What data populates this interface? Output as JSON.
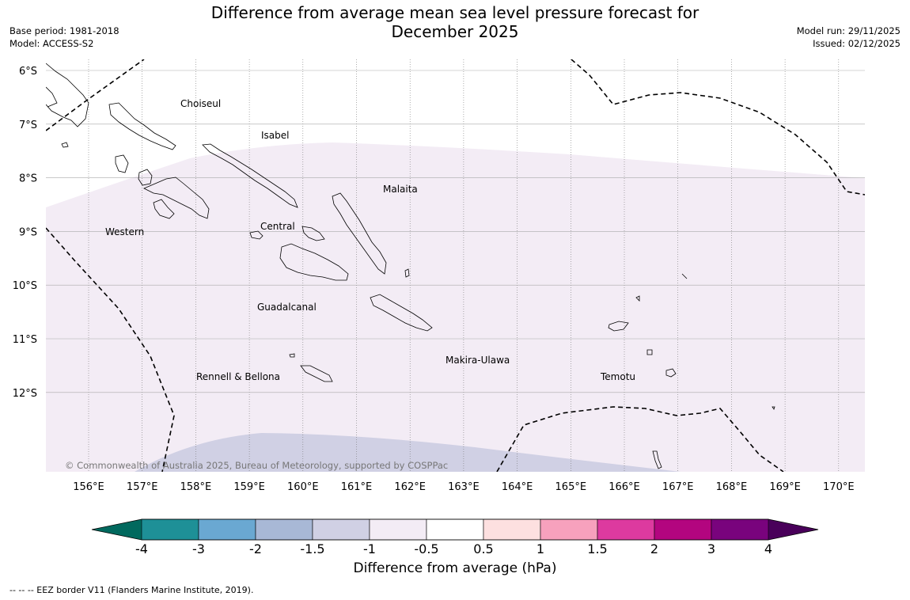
{
  "title_line1": "Difference from average mean sea level pressure forecast for",
  "title_line2": "December 2025",
  "meta_left": {
    "base_period": "Base period: 1981-2018",
    "model": "Model: ACCESS-S2"
  },
  "meta_right": {
    "model_run": "Model run: 29/11/2025",
    "issued": "Issued: 02/12/2025"
  },
  "latitudes": [
    "6°S",
    "7°S",
    "8°S",
    "9°S",
    "10°S",
    "11°S",
    "12°S"
  ],
  "longitudes": [
    "156°E",
    "157°E",
    "158°E",
    "159°E",
    "160°E",
    "161°E",
    "162°E",
    "163°E",
    "164°E",
    "165°E",
    "166°E",
    "167°E",
    "168°E",
    "169°E",
    "170°E"
  ],
  "provinces": [
    "Choiseul",
    "Isabel",
    "Malaita",
    "Western",
    "Central",
    "Guadalcanal",
    "Makira-Ulawa",
    "Rennell & Bellona",
    "Temotu"
  ],
  "copyright": "© Commonwealth of Australia 2025, Bureau of Meteorology, supported by COSPPac",
  "colorbar": {
    "ticks": [
      "-4",
      "-3",
      "-2",
      "-1.5",
      "-1",
      "-0.5",
      "0.5",
      "1",
      "1.5",
      "2",
      "3",
      "4"
    ],
    "colors": [
      "#1e9097",
      "#6aa8d2",
      "#a8b8d6",
      "#d0d0e4",
      "#f3ecf5",
      "#ffffff",
      "#fde0e0",
      "#f7a1bd",
      "#dd3a9f",
      "#b3057f",
      "#79037d"
    ],
    "under_color": "#01695e",
    "over_color": "#49005a",
    "label": "Difference from average (hPa)"
  },
  "footer": "--  --  -- EEZ border V11 (Flanders Marine Institute, 2019)."
}
